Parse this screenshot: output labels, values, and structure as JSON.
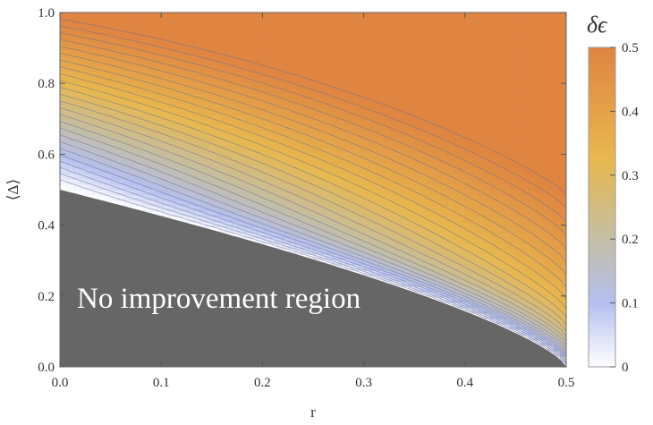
{
  "chart_data": {
    "type": "heatmap",
    "xlabel": "r",
    "ylabel": "⟨Δ⟩",
    "xlim": [
      0.0,
      0.5
    ],
    "ylim": [
      0.0,
      1.0
    ],
    "x_ticks": [
      "0.0",
      "0.1",
      "0.2",
      "0.3",
      "0.4",
      "0.5"
    ],
    "y_ticks": [
      "0.0",
      "0.2",
      "0.4",
      "0.6",
      "0.8",
      "1.0"
    ],
    "annotation": "No improvement region",
    "colorbar": {
      "title": "δϵ",
      "range": [
        0,
        0.5
      ],
      "ticks": [
        "0",
        "0.1",
        "0.2",
        "0.3",
        "0.4",
        "0.5"
      ],
      "colors": [
        "#ffffff",
        "#b4bff0",
        "#c4bea4",
        "#e8b84e",
        "#df8441"
      ]
    },
    "no_improvement_boundary": [
      {
        "r": 0.0,
        "delta": 0.5
      },
      {
        "r": 0.1,
        "delta": 0.45
      },
      {
        "r": 0.2,
        "delta": 0.38
      },
      {
        "r": 0.3,
        "delta": 0.29
      },
      {
        "r": 0.4,
        "delta": 0.17
      },
      {
        "r": 0.5,
        "delta": 0.0
      }
    ],
    "contour_lines": 25,
    "grid": false
  }
}
